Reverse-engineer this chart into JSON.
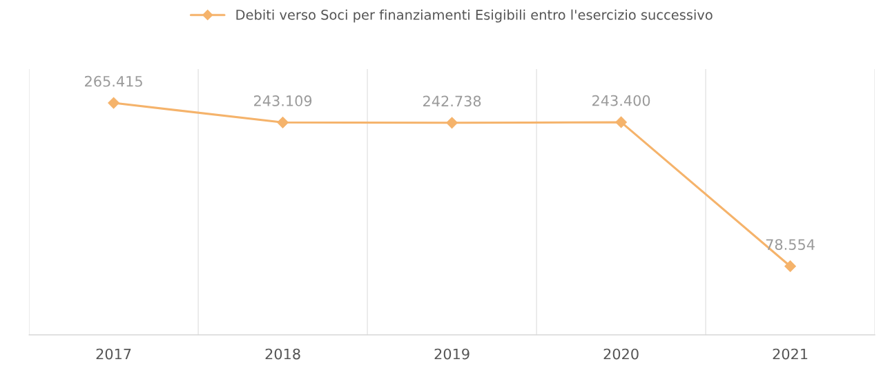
{
  "chart_data": {
    "type": "line",
    "categories": [
      "2017",
      "2018",
      "2019",
      "2020",
      "2021"
    ],
    "series": [
      {
        "name": "Debiti verso Soci per finanziamenti Esigibili entro l'esercizio successivo",
        "color": "#f5b36b",
        "values": [
          265415,
          243109,
          242738,
          243400,
          78554
        ],
        "value_labels": [
          "265.415",
          "243.109",
          "242.738",
          "243.400",
          "78.554"
        ]
      }
    ],
    "marker": "diamond",
    "line_style": "solid",
    "legend": "top",
    "grid": "x"
  }
}
